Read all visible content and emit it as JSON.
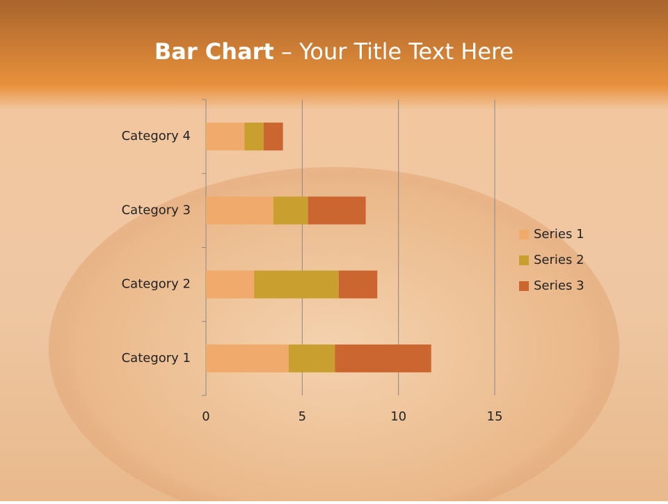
{
  "chart_data": {
    "type": "bar",
    "orientation": "horizontal",
    "stacked": true,
    "title": "Bar Chart",
    "subtitle": "– Your Title Text Here",
    "categories": [
      "Category 1",
      "Category 2",
      "Category 3",
      "Category 4"
    ],
    "series": [
      {
        "name": "Series 1",
        "color": "#f0aa6c",
        "values": [
          4.3,
          2.5,
          3.5,
          2
        ]
      },
      {
        "name": "Series 2",
        "color": "#c9a030",
        "values": [
          2.4,
          4.4,
          1.8,
          1
        ]
      },
      {
        "name": "Series 3",
        "color": "#cc6630",
        "values": [
          5,
          2,
          3,
          1
        ]
      }
    ],
    "xlim": [
      0,
      15
    ],
    "xticks": [
      0,
      5,
      10,
      15
    ],
    "grid": true,
    "legend": "right"
  }
}
